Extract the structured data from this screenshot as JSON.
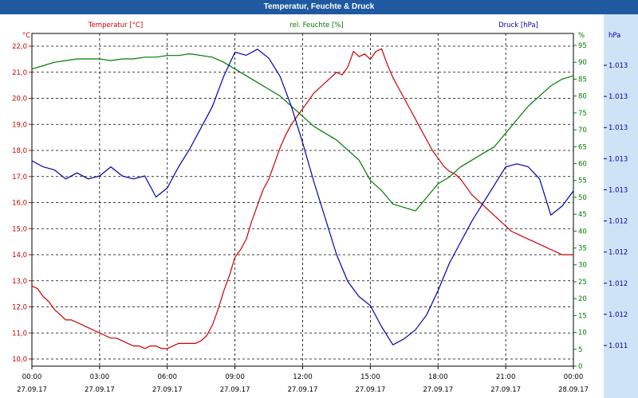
{
  "window": {
    "title": "Temperatur, Feuchte & Druck"
  },
  "colors": {
    "temperature": "#cc0000",
    "humidity": "#007a00",
    "pressure": "#0000aa",
    "grid": "#000000",
    "title_bar": "#1f5aa0",
    "right_band": "#cfe3f6"
  },
  "chart_data": {
    "type": "line",
    "title": "Temperatur, Feuchte & Druck",
    "grid": true,
    "x_ticks": [
      {
        "time": "00:00",
        "date": "27.09.17"
      },
      {
        "time": "03:00",
        "date": "27.09.17"
      },
      {
        "time": "06:00",
        "date": "27.09.17"
      },
      {
        "time": "09:00",
        "date": "27.09.17"
      },
      {
        "time": "12:00",
        "date": "27.09.17"
      },
      {
        "time": "15:00",
        "date": "27.09.17"
      },
      {
        "time": "18:00",
        "date": "27.09.17"
      },
      {
        "time": "21:00",
        "date": "27.09.17"
      },
      {
        "time": "00:00",
        "date": "28.09.17"
      }
    ],
    "x_range_hours": [
      0,
      24
    ],
    "axes": {
      "temperature": {
        "label": "Temperatur [°C]",
        "unit": "°C",
        "min": 10.0,
        "max": 22.0,
        "ticks": [
          "22,0",
          "21,0",
          "20,0",
          "19,0",
          "18,0",
          "17,0",
          "16,0",
          "15,0",
          "14,0",
          "13,0",
          "12,0",
          "11,0",
          "10,0"
        ]
      },
      "humidity": {
        "label": "rel. Feuchte [%]",
        "unit": "%",
        "min": 0,
        "max": 95,
        "ticks": [
          "%",
          "95",
          "90",
          "85",
          "80",
          "75",
          "70",
          "65",
          "60",
          "55",
          "50",
          "45",
          "40",
          "35",
          "30",
          "25",
          "20",
          "15",
          "10",
          "5",
          "0"
        ]
      },
      "pressure": {
        "label": "Druck [hPa]",
        "unit": "hPa",
        "ticks": [
          "1.013",
          "1.013",
          "1.013",
          "1.013",
          "1.013",
          "1.012",
          "1.012",
          "1.012",
          "1.012",
          "1.011"
        ]
      }
    },
    "series": [
      {
        "name": "Temperatur [°C]",
        "axis": "temperature",
        "x": [
          0,
          0.25,
          0.5,
          0.75,
          1,
          1.25,
          1.5,
          1.75,
          2,
          2.25,
          2.5,
          2.75,
          3,
          3.25,
          3.5,
          3.75,
          4,
          4.25,
          4.5,
          4.75,
          5,
          5.25,
          5.5,
          5.75,
          6,
          6.25,
          6.5,
          6.75,
          7,
          7.25,
          7.5,
          7.75,
          8,
          8.25,
          8.5,
          8.75,
          9,
          9.25,
          9.5,
          9.75,
          10,
          10.25,
          10.5,
          10.75,
          11,
          11.25,
          11.5,
          11.75,
          12,
          12.25,
          12.5,
          12.75,
          13,
          13.25,
          13.5,
          13.75,
          14,
          14.25,
          14.5,
          14.75,
          15,
          15.25,
          15.5,
          15.75,
          16,
          16.25,
          16.5,
          16.75,
          17,
          17.25,
          17.5,
          17.75,
          18,
          18.25,
          18.5,
          18.75,
          19,
          19.25,
          19.5,
          19.75,
          20,
          20.25,
          20.5,
          20.75,
          21,
          21.25,
          21.5,
          21.75,
          22,
          22.25,
          22.5,
          22.75,
          23,
          23.25,
          23.5,
          23.75,
          24
        ],
        "values": [
          12.8,
          12.7,
          12.4,
          12.2,
          11.9,
          11.7,
          11.5,
          11.5,
          11.4,
          11.3,
          11.2,
          11.1,
          11.0,
          10.9,
          10.8,
          10.8,
          10.7,
          10.6,
          10.5,
          10.5,
          10.4,
          10.5,
          10.5,
          10.4,
          10.4,
          10.5,
          10.6,
          10.6,
          10.6,
          10.6,
          10.7,
          10.9,
          11.3,
          11.9,
          12.6,
          13.2,
          13.9,
          14.2,
          14.6,
          15.3,
          15.9,
          16.5,
          16.9,
          17.5,
          18.1,
          18.6,
          19.0,
          19.3,
          19.6,
          19.9,
          20.2,
          20.4,
          20.6,
          20.8,
          21.0,
          20.9,
          21.2,
          21.8,
          21.6,
          21.7,
          21.5,
          21.8,
          21.9,
          21.3,
          20.8,
          20.4,
          20.0,
          19.6,
          19.2,
          18.8,
          18.4,
          18.0,
          17.7,
          17.4,
          17.2,
          17.1,
          16.9,
          16.6,
          16.3,
          16.1,
          15.9,
          15.7,
          15.5,
          15.3,
          15.1,
          14.9,
          14.8,
          14.7,
          14.6,
          14.5,
          14.4,
          14.3,
          14.2,
          14.1,
          14.0,
          14.0,
          14.0
        ],
        "color": "#cc0000"
      },
      {
        "name": "rel. Feuchte [%]",
        "axis": "humidity",
        "x": [
          0,
          0.5,
          1,
          1.5,
          2,
          2.5,
          3,
          3.5,
          4,
          4.5,
          5,
          5.5,
          6,
          6.5,
          7,
          7.5,
          8,
          8.5,
          9,
          9.5,
          10,
          10.5,
          11,
          11.5,
          12,
          12.5,
          13,
          13.5,
          14,
          14.5,
          15,
          15.5,
          16,
          16.5,
          17,
          17.5,
          18,
          18.5,
          19,
          19.5,
          20,
          20.5,
          21,
          21.5,
          22,
          22.5,
          23,
          23.5,
          24
        ],
        "values": [
          88,
          89,
          90,
          90.5,
          91,
          91,
          91,
          90.5,
          91,
          91,
          91.5,
          91.5,
          92,
          92,
          92.5,
          92,
          91.5,
          90,
          88,
          86,
          84,
          82,
          80,
          77,
          74,
          71,
          69,
          67,
          64,
          61,
          55,
          52,
          48,
          47,
          46,
          50,
          54,
          56,
          59,
          61,
          63,
          65,
          69,
          73,
          77,
          80,
          83,
          85,
          86
        ],
        "color": "#007a00"
      },
      {
        "name": "Druck [hPa]",
        "axis": "pressure",
        "x": [
          0,
          0.5,
          1,
          1.5,
          2,
          2.5,
          3,
          3.5,
          4,
          4.5,
          5,
          5.5,
          6,
          6.5,
          7,
          7.5,
          8,
          8.5,
          9,
          9.5,
          10,
          10.5,
          11,
          11.5,
          12,
          12.5,
          13,
          13.5,
          14,
          14.5,
          15,
          15.5,
          16,
          16.5,
          17,
          17.5,
          18,
          18.5,
          19,
          19.5,
          20,
          20.5,
          21,
          21.5,
          22,
          22.5,
          23,
          23.5,
          24
        ],
        "values": [
          0.62,
          0.6,
          0.59,
          0.56,
          0.58,
          0.56,
          0.57,
          0.6,
          0.57,
          0.56,
          0.57,
          0.5,
          0.53,
          0.6,
          0.66,
          0.73,
          0.8,
          0.9,
          0.98,
          0.97,
          0.99,
          0.96,
          0.9,
          0.8,
          0.68,
          0.55,
          0.43,
          0.31,
          0.22,
          0.17,
          0.14,
          0.07,
          0.01,
          0.03,
          0.06,
          0.11,
          0.19,
          0.28,
          0.35,
          0.42,
          0.48,
          0.54,
          0.6,
          0.61,
          0.6,
          0.56,
          0.44,
          0.47,
          0.52
        ],
        "color": "#0000aa"
      }
    ]
  }
}
